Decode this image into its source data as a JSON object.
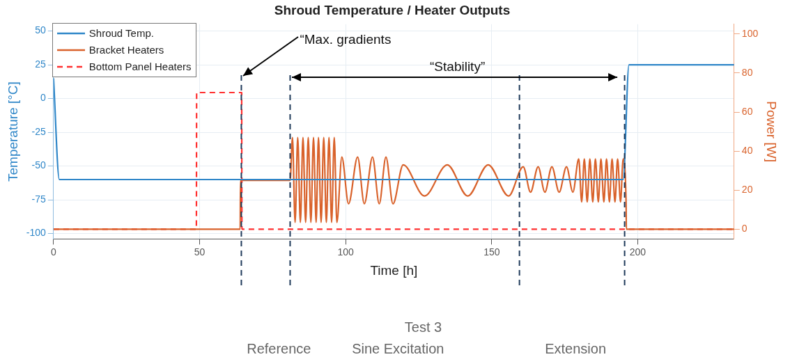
{
  "chart_data": {
    "type": "line",
    "title": "Shroud Temperature / Heater Outputs",
    "xlabel": "Time [h]",
    "ylabel": "Temperature [°C]",
    "y2label": "Power [W]",
    "xlim": [
      0,
      233
    ],
    "xticks": [
      0,
      50,
      100,
      150,
      200
    ],
    "ylim": [
      -104,
      55
    ],
    "yticks": [
      -100,
      -75,
      -50,
      -25,
      0,
      25,
      50
    ],
    "y2lim": [
      -5,
      105
    ],
    "y2ticks": [
      0,
      20,
      40,
      60,
      80,
      100
    ],
    "grid": true,
    "legend": "top left",
    "marker": "none",
    "series": [
      {
        "name": "Shroud Temp.",
        "color": "#2e86c8",
        "type": "line",
        "line_style": "solid",
        "x": [
          0,
          2,
          195,
          197,
          233
        ],
        "values": [
          15,
          -60,
          -60,
          25,
          25
        ]
      },
      {
        "name": "Bracket Heaters",
        "color": "#d9622b",
        "type": "line",
        "line_style": "solid",
        "axis": "y2",
        "x": [
          0,
          63.9,
          64,
          81,
          81.8,
          82.7,
          83.6,
          84.5,
          85.4,
          86.3,
          87.2,
          88.1,
          89.0,
          89.9,
          90.7,
          91.6,
          92.5,
          93.4,
          94.3,
          95.2,
          96.1,
          97.0,
          98.7,
          101.0,
          104.1,
          106.4,
          109.2,
          111.5,
          113.8,
          116.2,
          119.7,
          127.0,
          134.8,
          141.8,
          148.8,
          155.8,
          160.8,
          163.3,
          165.9,
          168.2,
          170.6,
          173.1,
          175.6,
          177.8,
          179.8,
          180.8,
          181.7,
          182.7,
          183.6,
          184.6,
          185.5,
          186.5,
          187.4,
          188.4,
          189.3,
          190.3,
          191.2,
          192.2,
          193.1,
          194.1,
          195.0,
          196.0,
          196.1,
          233
        ],
        "values": [
          0,
          0,
          25,
          25,
          47,
          3.5,
          47,
          3.5,
          47,
          3.5,
          47,
          3.5,
          47,
          3.5,
          47,
          3.5,
          47,
          3.5,
          47,
          3.5,
          47,
          3.5,
          37,
          13,
          37,
          13,
          37,
          13,
          37,
          13,
          33,
          17,
          33,
          17,
          33,
          17,
          32,
          19,
          32,
          19,
          32,
          19,
          32,
          19,
          36,
          14,
          36,
          14,
          36,
          14,
          36,
          14,
          36,
          14,
          36,
          14,
          36,
          14,
          36,
          14,
          36,
          14,
          0,
          0
        ]
      },
      {
        "name": "Bottom Panel Heaters",
        "color": "#ff3030",
        "type": "line",
        "line_style": "dashed",
        "axis": "y2",
        "x": [
          0,
          48.9,
          49,
          64.4,
          64.5,
          233
        ],
        "values": [
          0,
          0,
          70,
          70,
          0,
          0
        ]
      }
    ],
    "ref_lines": [
      {
        "axis": "x",
        "value": 64.3,
        "color": "#1f3a5a",
        "line_style": "dashed"
      },
      {
        "axis": "x",
        "value": 81,
        "color": "#1f3a5a",
        "line_style": "dashed"
      },
      {
        "axis": "x",
        "value": 159.5,
        "color": "#1f3a5a",
        "line_style": "dashed"
      },
      {
        "axis": "x",
        "value": 195.5,
        "color": "#1f3a5a",
        "line_style": "dashed"
      }
    ],
    "annotations": [
      {
        "text": "“Max. gradients",
        "x": 64.3,
        "y": 17
      },
      "“Stability”",
      "Test 3",
      "Reference",
      "Sine Excitation",
      "Extension"
    ]
  }
}
